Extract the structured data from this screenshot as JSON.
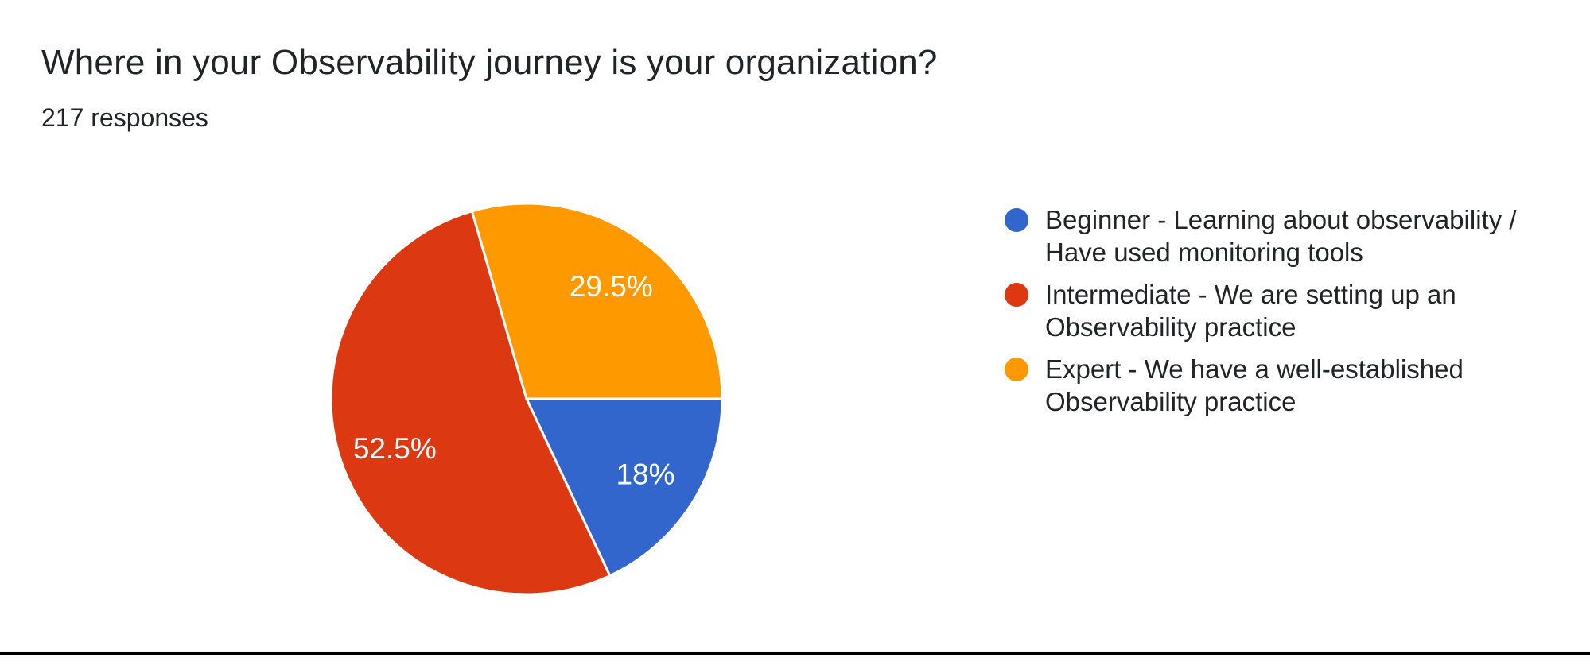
{
  "chart": {
    "title": "Where in your Observability journey is your organization?",
    "subtitle": "217 responses"
  },
  "chart_data": {
    "type": "pie",
    "title": "Where in your Observability journey is your organization?",
    "subtitle": "217 responses",
    "total_responses": 217,
    "legend_position": "right",
    "start_angle_deg_clockwise_from_top": 90,
    "slices": [
      {
        "label": "Beginner - Learning about observability / Have used monitoring tools",
        "value_percent": 18,
        "display": "18%",
        "color": "#3366CC"
      },
      {
        "label": "Intermediate - We are setting up an Observability practice",
        "value_percent": 52.5,
        "display": "52.5%",
        "color": "#DC3912"
      },
      {
        "label": "Expert - We have a well-established Observability practice",
        "value_percent": 29.5,
        "display": "29.5%",
        "color": "#FF9900"
      }
    ]
  },
  "legend": {
    "items": [
      {
        "color": "#3366CC",
        "lines": [
          "Beginner - Learning about observability /",
          "Have used monitoring tools"
        ]
      },
      {
        "color": "#DC3912",
        "lines": [
          "Intermediate - We are setting up an",
          "Observability practice"
        ]
      },
      {
        "color": "#FF9900",
        "lines": [
          "Expert - We have a well-established",
          "Observability practice"
        ]
      }
    ]
  }
}
